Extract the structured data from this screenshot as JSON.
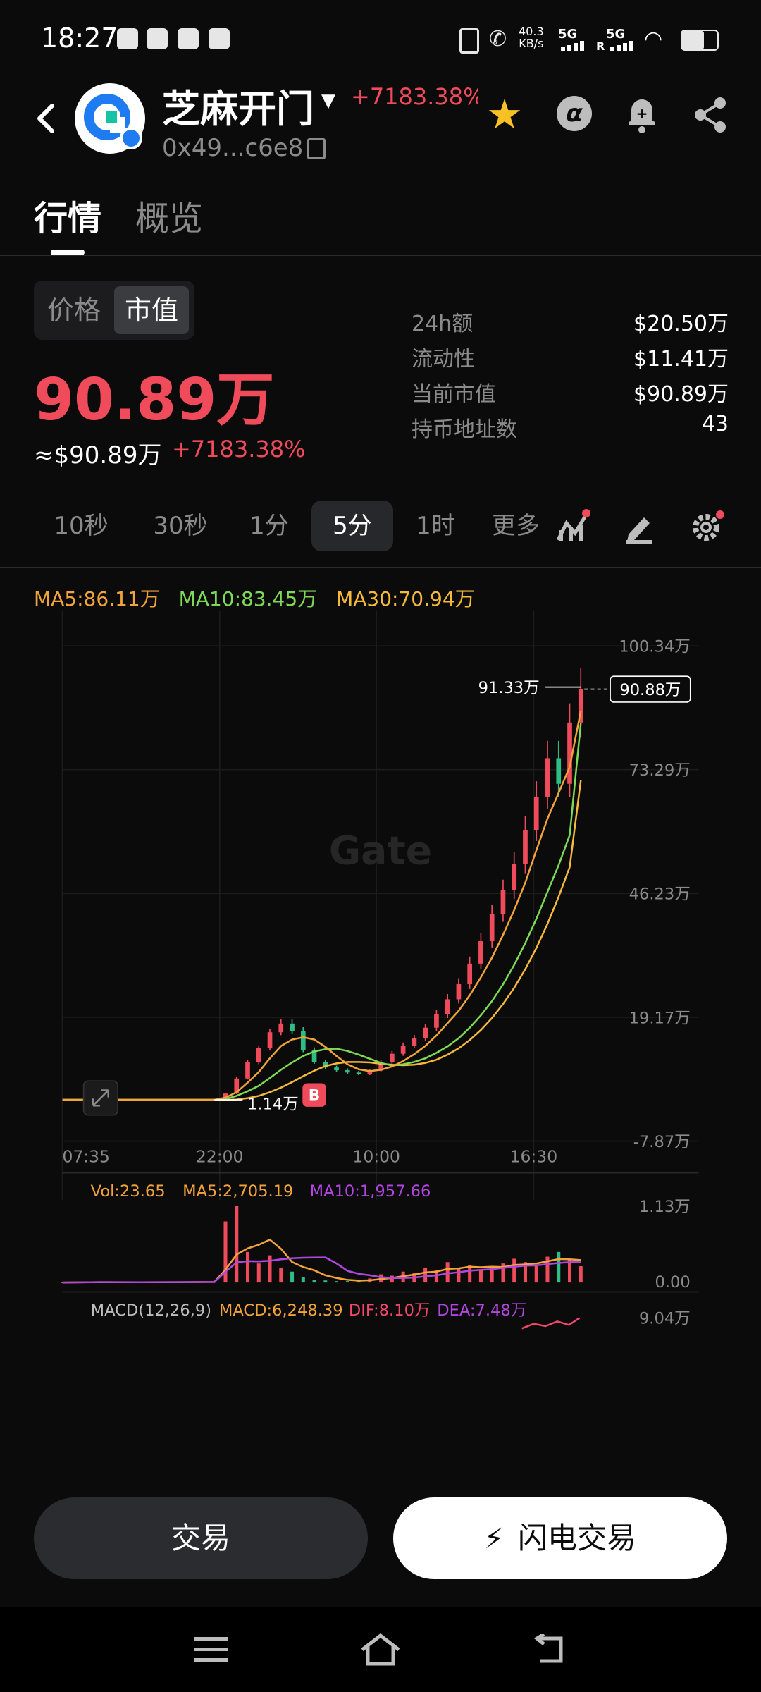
{
  "status": {
    "time": "18:27",
    "net_speed_top": "40.3",
    "net_speed_unit": "KB/s",
    "sig1": "5G",
    "sig2": "5G",
    "sig2_sub": "R"
  },
  "header": {
    "token_name": "芝麻开门",
    "change": "+7183.38%",
    "address": "0x49...c6e8"
  },
  "tabs": [
    {
      "label": "行情"
    },
    {
      "label": "概览"
    }
  ],
  "toggle": {
    "price_label": "价格",
    "mcap_label": "市值"
  },
  "market": {
    "big_value": "90.89万",
    "approx": "≈$90.89万",
    "pct": "+7183.38%"
  },
  "stats": [
    {
      "label": "24h额",
      "value": "$20.50万"
    },
    {
      "label": "流动性",
      "value": "$11.41万"
    },
    {
      "label": "当前市值",
      "value": "$90.89万"
    },
    {
      "label": "持币地址数",
      "value": "43"
    }
  ],
  "intervals": [
    "10秒",
    "30秒",
    "1分",
    "5分",
    "1时",
    "更多"
  ],
  "active_interval": "5分",
  "chart_data": {
    "type": "line",
    "ma_legend": {
      "ma5": "MA5:86.11万",
      "ma10": "MA10:83.45万",
      "ma30": "MA30:70.94万"
    },
    "y_ticks": [
      "100.34万",
      "73.29万",
      "46.23万",
      "19.17万",
      "-7.87万"
    ],
    "x_ticks": [
      "07:35",
      "22:00",
      "10:00",
      "16:30"
    ],
    "high_label": "91.33万",
    "low_label": "1.14万",
    "current_label": "90.88万",
    "buy_marker": "B",
    "watermark": "Gate",
    "price": [
      1.14,
      1.14,
      1.13,
      1.14,
      1.15,
      2.5,
      5.8,
      9.3,
      12.4,
      15.9,
      17.8,
      16.2,
      12.0,
      9.4,
      8.2,
      7.6,
      7.1,
      6.8,
      7.5,
      9.4,
      11.2,
      13.0,
      14.6,
      16.9,
      19.8,
      23.1,
      26.4,
      30.9,
      35.8,
      41.7,
      46.9,
      52.6,
      60.1,
      67.4,
      75.8,
      70.2,
      83.6,
      90.88
    ],
    "ma5": [
      1.14,
      1.14,
      1.14,
      1.14,
      1.14,
      1.6,
      2.8,
      4.9,
      7.2,
      10.2,
      12.9,
      14.3,
      14.8,
      14.3,
      12.7,
      10.7,
      8.9,
      7.8,
      7.4,
      7.7,
      8.4,
      9.6,
      11.1,
      12.9,
      15.2,
      17.9,
      20.6,
      24.0,
      27.9,
      32.2,
      37.2,
      42.6,
      48.6,
      55.7,
      62.6,
      68.2,
      73.9,
      86.11
    ],
    "ma10": [
      1.14,
      1.14,
      1.14,
      1.14,
      1.14,
      1.3,
      2.0,
      3.0,
      4.2,
      5.9,
      7.7,
      9.3,
      10.7,
      11.7,
      12.2,
      12.3,
      11.8,
      11.0,
      10.1,
      9.2,
      8.6,
      8.9,
      9.4,
      10.2,
      11.4,
      12.8,
      14.6,
      16.9,
      19.6,
      22.7,
      26.4,
      30.6,
      35.4,
      40.7,
      46.6,
      52.4,
      59.0,
      83.45
    ],
    "ma30": [
      1.14,
      1.14,
      1.14,
      1.14,
      1.14,
      1.14,
      1.2,
      1.5,
      2.0,
      2.8,
      3.8,
      5.0,
      6.3,
      7.5,
      8.5,
      9.1,
      9.4,
      9.4,
      9.3,
      9.0,
      8.8,
      8.7,
      8.8,
      9.2,
      9.9,
      11.0,
      12.4,
      14.2,
      16.4,
      19.0,
      22.1,
      25.6,
      29.7,
      34.3,
      39.6,
      45.5,
      52.0,
      70.94
    ],
    "volume_legend": {
      "vol": "Vol:23.65",
      "ma5": "MA5:2,705.19",
      "ma10": "MA10:1,957.66"
    },
    "volume_ticks": [
      "1.13万",
      "0.00"
    ],
    "volume": [
      0.0,
      0.01,
      0.0,
      0.01,
      0.02,
      0.9,
      1.13,
      0.45,
      0.28,
      0.4,
      0.22,
      0.16,
      0.08,
      0.04,
      0.03,
      0.02,
      0.02,
      0.03,
      0.06,
      0.12,
      0.1,
      0.16,
      0.14,
      0.22,
      0.18,
      0.3,
      0.2,
      0.26,
      0.18,
      0.22,
      0.28,
      0.35,
      0.3,
      0.25,
      0.38,
      0.45,
      0.33,
      0.24
    ],
    "macd_legend": {
      "title": "MACD(12,26,9)",
      "macd": "MACD:6,248.39",
      "dif": "DIF:8.10万",
      "dea": "DEA:7.48万"
    },
    "macd_tick": "9.04万"
  },
  "actions": {
    "trade_label": "交易",
    "flash_label": "闪电交易"
  },
  "colors": {
    "up": "#f04b5b",
    "down": "#2ebd85",
    "ma5": "#f2a33a",
    "ma10": "#7ed957",
    "ma30": "#f5b93b",
    "vol_ma10": "#b146e0",
    "bg": "#0b0b0b"
  }
}
